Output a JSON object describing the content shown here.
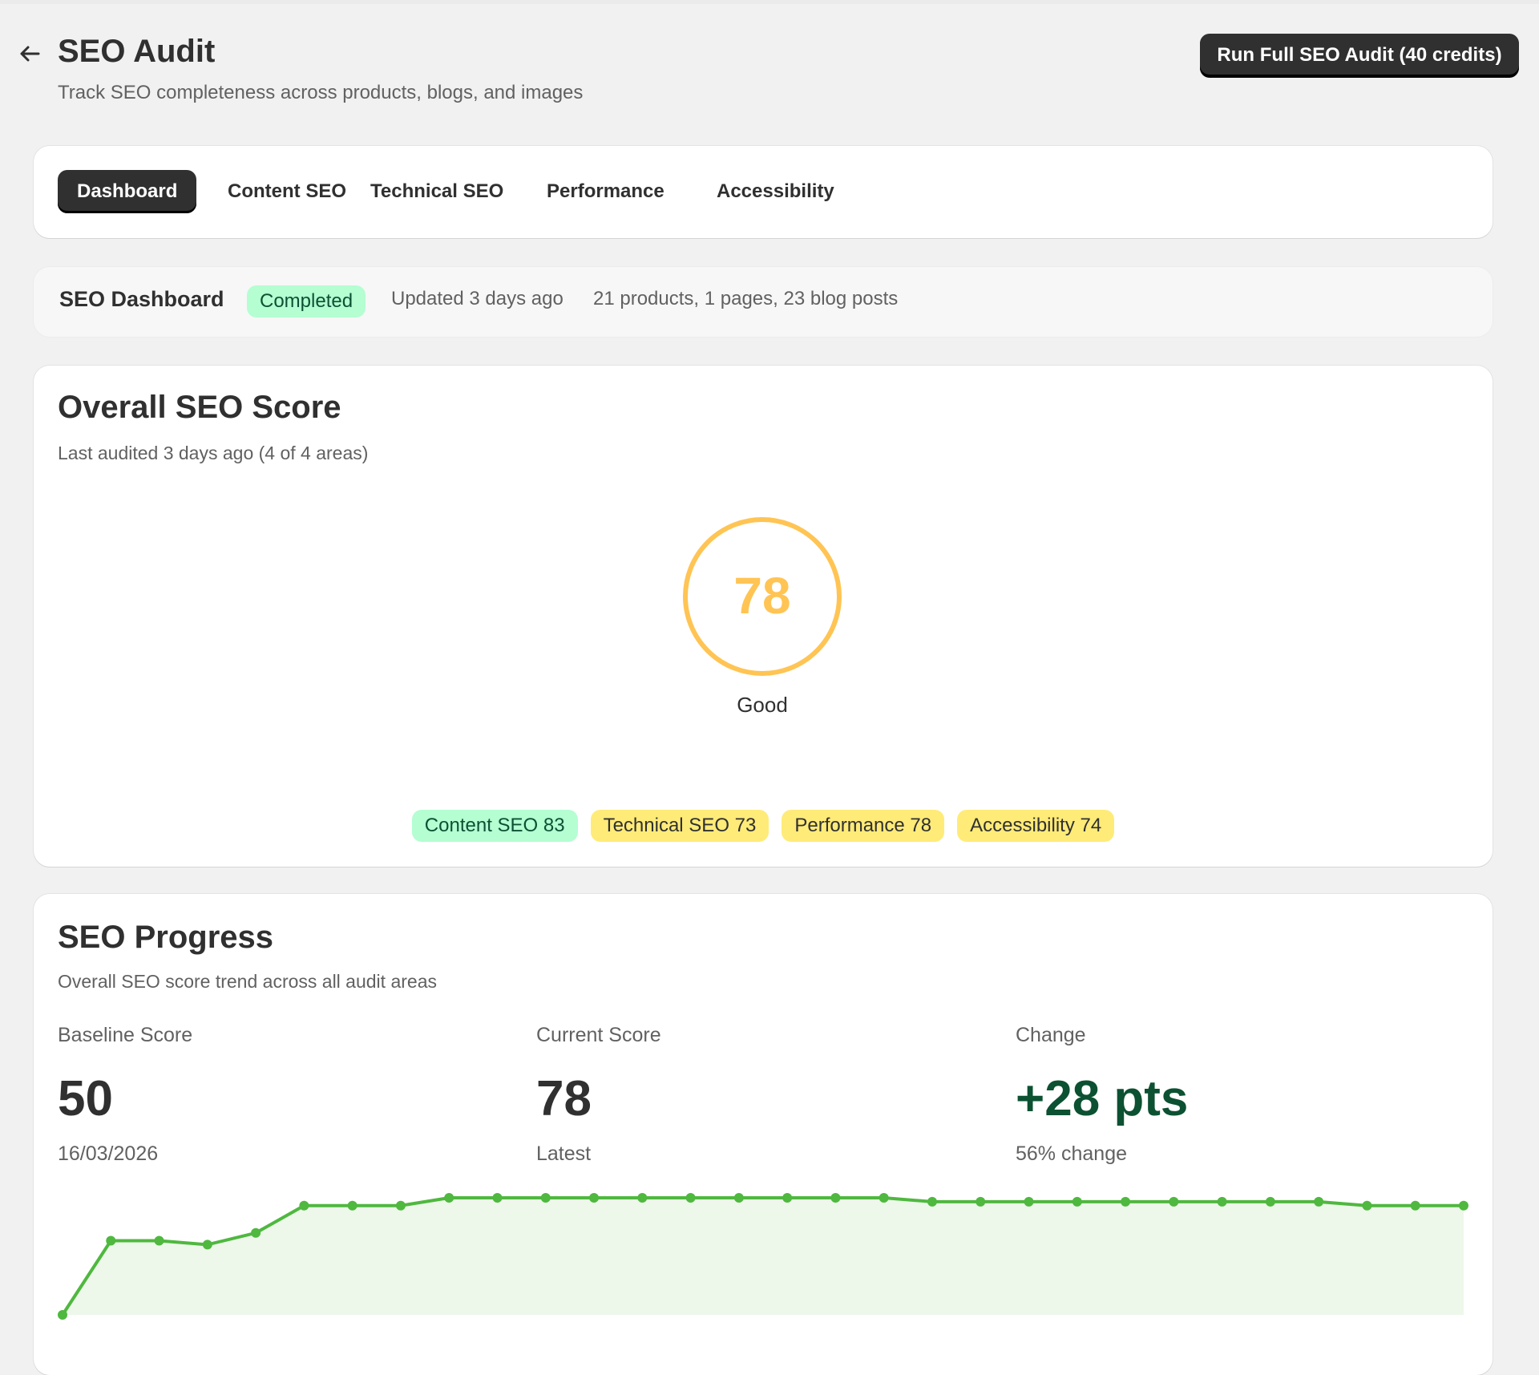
{
  "header": {
    "title": "SEO Audit",
    "subtitle": "Track SEO completeness across products, blogs, and images",
    "run_button": "Run Full SEO Audit (40 credits)"
  },
  "tabs": [
    {
      "label": "Dashboard",
      "active": true
    },
    {
      "label": "Content SEO"
    },
    {
      "label": "Technical SEO"
    },
    {
      "label": "Performance"
    },
    {
      "label": "Accessibility"
    }
  ],
  "status_bar": {
    "title": "SEO Dashboard",
    "badge": "Completed",
    "updated": "Updated 3 days ago",
    "counts": "21 products, 1 pages, 23 blog posts"
  },
  "overall": {
    "title": "Overall SEO Score",
    "subtitle": "Last audited 3 days ago (4 of 4 areas)",
    "score": "78",
    "rating": "Good",
    "ring_color": "#ffc453",
    "areas": [
      {
        "label": "Content SEO 83",
        "color": "#b4fed2"
      },
      {
        "label": "Technical SEO 73",
        "color": "#ffeb78"
      },
      {
        "label": "Performance 78",
        "color": "#ffeb78"
      },
      {
        "label": "Accessibility 74",
        "color": "#ffeb78"
      }
    ]
  },
  "progress": {
    "title": "SEO Progress",
    "subtitle": "Overall SEO score trend across all audit areas",
    "baseline": {
      "label": "Baseline Score",
      "value": "50",
      "note": "16/03/2026"
    },
    "current": {
      "label": "Current Score",
      "value": "78",
      "note": "Latest"
    },
    "change": {
      "label": "Change",
      "value": "+28 pts",
      "note": "56% change",
      "color": "#0c5132"
    }
  },
  "chart_data": {
    "type": "area",
    "line_color": "#4fb83f",
    "fill_color": "#edf7ea",
    "values": [
      50,
      69,
      69,
      68,
      71,
      78,
      78,
      78,
      80,
      80,
      80,
      80,
      80,
      80,
      80,
      80,
      80,
      80,
      79,
      79,
      79,
      79,
      79,
      79,
      79,
      79,
      79,
      78,
      78,
      78
    ],
    "ylim": [
      50,
      80
    ],
    "grid": false
  }
}
